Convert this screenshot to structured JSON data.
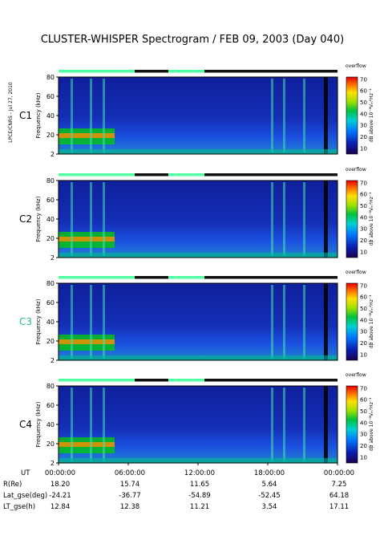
{
  "chart_data": {
    "type": "heatmap",
    "title": "CLUSTER-WHISPER Spectrogram / FEB 09, 2003 (Day 040)",
    "side_caption": "LPCE/CNRS - Jul 27, 2010",
    "ylabel": "Frequency (kHz)",
    "ylim": [
      2,
      80
    ],
    "y_ticks": [
      "2",
      "20",
      "40",
      "60",
      "80"
    ],
    "x_ticks": [
      "00:00:00",
      "06:00:00",
      "12:00:00",
      "18:00:00",
      "00:00:00"
    ],
    "colorbar": {
      "ticks": [
        "10",
        "20",
        "30",
        "40",
        "50",
        "60",
        "70"
      ],
      "label": "dB above 10⁻⁸Vₘ²Hz⁻¹",
      "top_label": "overflow",
      "range": [
        5,
        72
      ]
    },
    "panels": [
      {
        "label": "C1",
        "label_color": "#000000"
      },
      {
        "label": "C2",
        "label_color": "#000000"
      },
      {
        "label": "C3",
        "label_color": "#2fbf7f"
      },
      {
        "label": "C4",
        "label_color": "#000000"
      }
    ],
    "ephemeris": {
      "rows": [
        {
          "label": "UT",
          "values": [
            "00:00:00",
            "06:00:00",
            "12:00:00",
            "18:00:00",
            "00:00:00"
          ]
        },
        {
          "label": "R(Re)",
          "values": [
            "18.20",
            "15.74",
            "11.65",
            "5.64",
            "7.25"
          ]
        },
        {
          "label": "Lat_gse(deg)",
          "values": [
            "-24.21",
            "-36.77",
            "-54.89",
            "-52.45",
            "64.18"
          ]
        },
        {
          "label": "LT_gse(h)",
          "values": [
            "12.84",
            "12.38",
            "11.21",
            "3.54",
            "17.11"
          ]
        }
      ]
    }
  }
}
